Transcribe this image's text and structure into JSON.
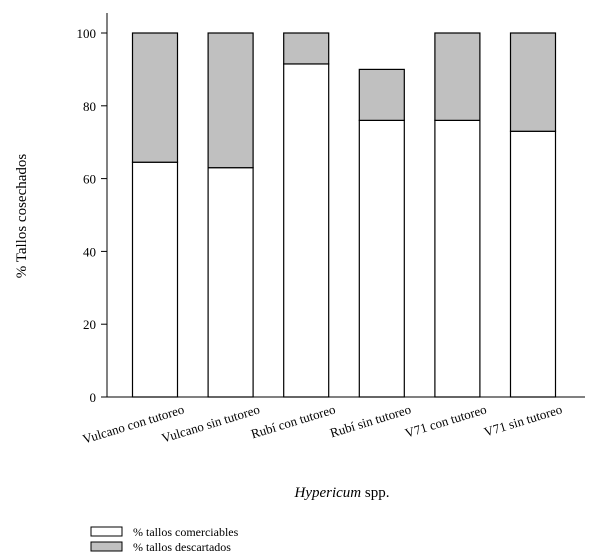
{
  "chart_data": {
    "type": "bar",
    "stacked": true,
    "categories": [
      "Vulcano con tutoreo",
      "Vulcano sin tutoreo",
      "Rubí con tutoreo",
      "Rubí sin tutoreo",
      "V71 con tutoreo",
      "V71 sin tutoreo"
    ],
    "series": [
      {
        "name": "% tallos comerciables",
        "values": [
          64.5,
          63,
          91.5,
          76,
          76,
          73
        ],
        "color": "#ffffff"
      },
      {
        "name": "% tallos descartados",
        "values": [
          35.5,
          37,
          8.5,
          14,
          24,
          27
        ],
        "color": "#c0c0c0"
      }
    ],
    "xlabel_italic": "Hypericum",
    "xlabel_rest": " spp.",
    "ylabel": "% Tallos cosechados",
    "ylim": [
      0,
      100
    ],
    "yticks": [
      0,
      20,
      40,
      60,
      80,
      100
    ],
    "grid": false,
    "legend_position": "bottom-left"
  }
}
